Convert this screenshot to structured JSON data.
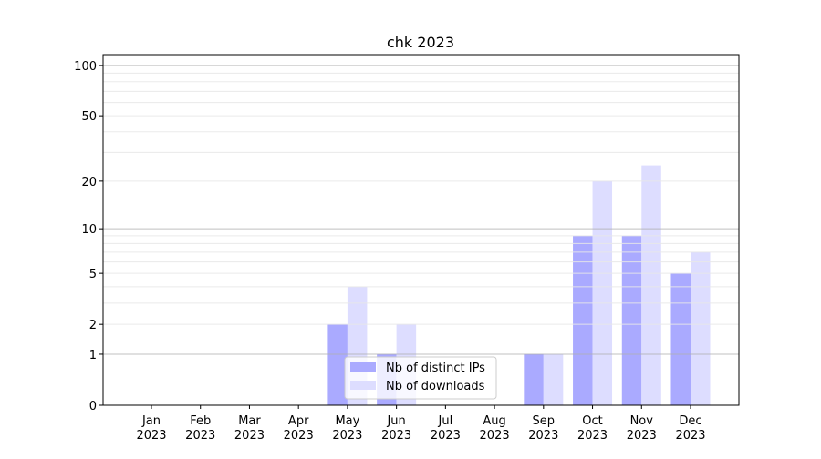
{
  "chart_data": {
    "type": "bar",
    "title": "chk 2023",
    "xlabel": "",
    "ylabel": "",
    "yscale": "log(1+y)",
    "ylim": [
      0,
      116
    ],
    "yticks": [
      0,
      1,
      2,
      5,
      10,
      20,
      50,
      100
    ],
    "ytick_labels": [
      "0",
      "1",
      "2",
      "5",
      "10",
      "20",
      "50",
      "100"
    ],
    "grid": true,
    "legend_placement": "bottom-center",
    "categories": [
      "Jan\n2023",
      "Feb\n2023",
      "Mar\n2023",
      "Apr\n2023",
      "May\n2023",
      "Jun\n2023",
      "Jul\n2023",
      "Aug\n2023",
      "Sep\n2023",
      "Oct\n2023",
      "Nov\n2023",
      "Dec\n2023"
    ],
    "series": [
      {
        "name": "Nb of distinct IPs",
        "color": "#aaaaff",
        "values": [
          0,
          0,
          0,
          0,
          2,
          1,
          0,
          0,
          1,
          9,
          9,
          5
        ]
      },
      {
        "name": "Nb of downloads",
        "color": "#ddddff",
        "values": [
          0,
          0,
          0,
          0,
          4,
          2,
          0,
          0,
          1,
          20,
          25,
          7
        ]
      }
    ]
  }
}
